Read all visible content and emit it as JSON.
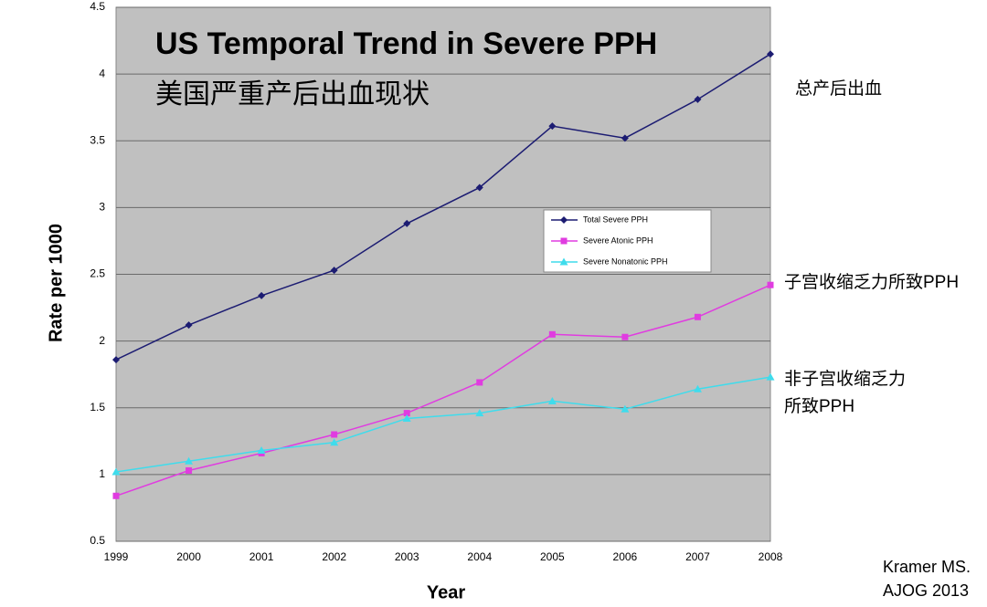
{
  "chart_data": {
    "type": "line",
    "title": "US Temporal Trend in Severe PPH",
    "subtitle": "美国严重产后出血现状",
    "x_label": "Year",
    "y_label": "Rate per 1000",
    "categories": [
      "1999",
      "2000",
      "2001",
      "2002",
      "2003",
      "2004",
      "2005",
      "2006",
      "2007",
      "2008"
    ],
    "series": [
      {
        "name": "Total Severe PPH",
        "color": "#1c1c72",
        "marker": "diamond",
        "values": [
          1.86,
          2.12,
          2.34,
          2.53,
          2.88,
          3.15,
          3.61,
          3.52,
          3.81,
          4.15
        ]
      },
      {
        "name": "Severe Atonic PPH",
        "color": "#e03ce0",
        "marker": "square",
        "values": [
          0.84,
          1.03,
          1.16,
          1.3,
          1.46,
          1.69,
          2.05,
          2.03,
          2.18,
          2.42
        ]
      },
      {
        "name": "Severe Nonatonic PPH",
        "color": "#3fdcec",
        "marker": "triangle",
        "values": [
          1.02,
          1.1,
          1.18,
          1.24,
          1.42,
          1.46,
          1.55,
          1.49,
          1.64,
          1.73
        ]
      }
    ],
    "ylim": [
      0.5,
      4.5
    ],
    "yticks": [
      0.5,
      1,
      1.5,
      2,
      2.5,
      3,
      3.5,
      4,
      4.5
    ],
    "grid": true,
    "annotations": [
      "总产后出血",
      "子宫收缩乏力所致PPH",
      "非子宫收缩乏力",
      "所致PPH"
    ],
    "source": [
      "Kramer MS.",
      "AJOG 2013"
    ]
  }
}
